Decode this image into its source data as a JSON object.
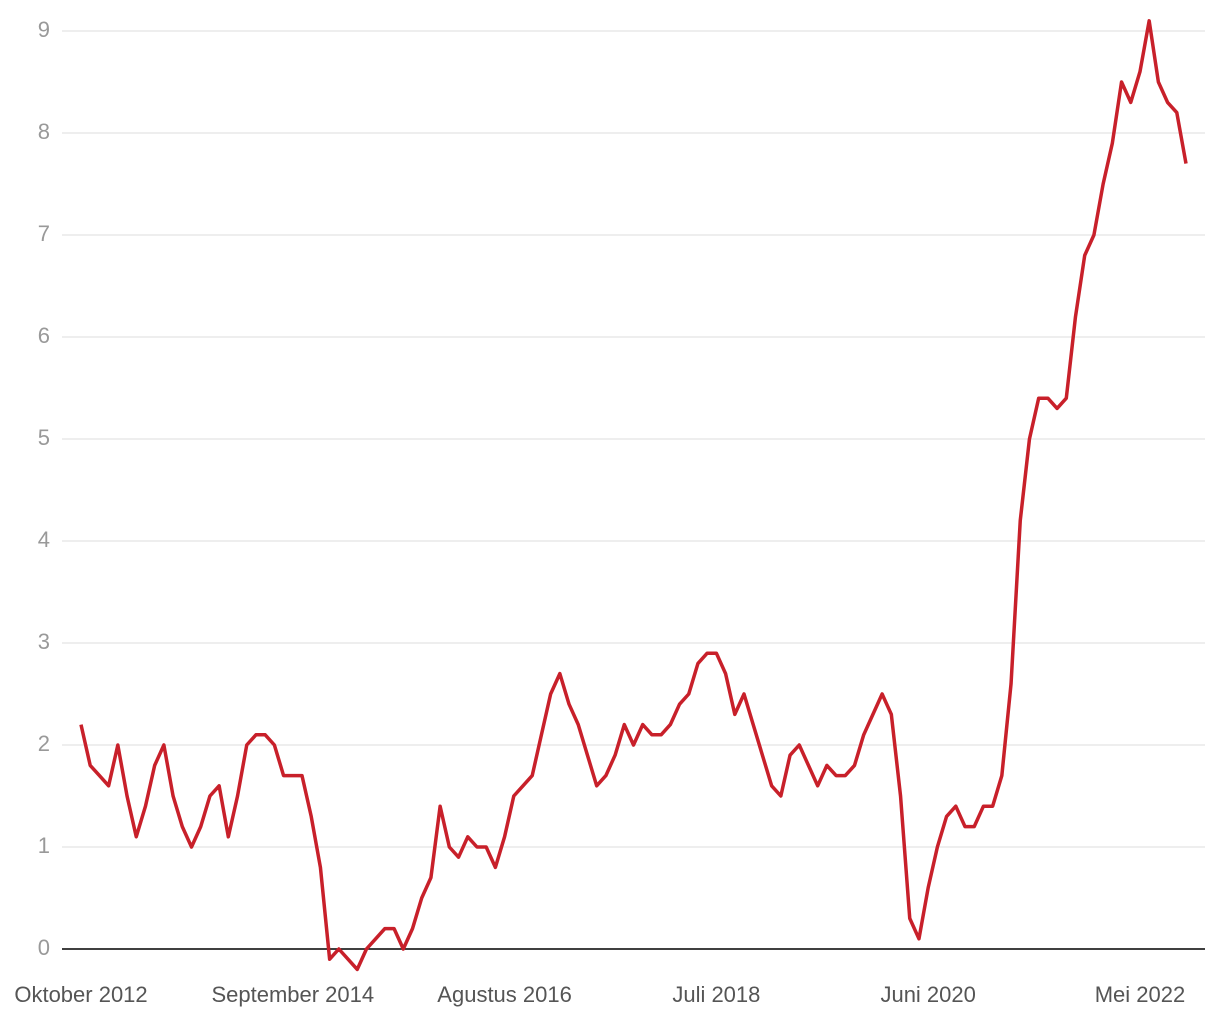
{
  "chart_data": {
    "type": "line",
    "categories": [
      "Oktober 2012",
      null,
      null,
      null,
      null,
      null,
      null,
      null,
      null,
      null,
      null,
      null,
      null,
      null,
      null,
      null,
      null,
      null,
      null,
      null,
      null,
      null,
      null,
      "September 2014",
      null,
      null,
      null,
      null,
      null,
      null,
      null,
      null,
      null,
      null,
      null,
      null,
      null,
      null,
      null,
      null,
      null,
      null,
      null,
      null,
      null,
      null,
      "Agustus 2016",
      null,
      null,
      null,
      null,
      null,
      null,
      null,
      null,
      null,
      null,
      null,
      null,
      null,
      null,
      null,
      null,
      null,
      null,
      null,
      null,
      null,
      null,
      "Juli 2018",
      null,
      null,
      null,
      null,
      null,
      null,
      null,
      null,
      null,
      null,
      null,
      null,
      null,
      null,
      null,
      null,
      null,
      null,
      null,
      null,
      null,
      null,
      "Juni 2020",
      null,
      null,
      null,
      null,
      null,
      null,
      null,
      null,
      null,
      null,
      null,
      null,
      null,
      null,
      null,
      null,
      null,
      null,
      null,
      null,
      null,
      null,
      "Mei 2022",
      null,
      null,
      null,
      null,
      null
    ],
    "values": [
      2.2,
      1.8,
      1.7,
      1.6,
      2.0,
      1.5,
      1.1,
      1.4,
      1.8,
      2.0,
      1.5,
      1.2,
      1.0,
      1.2,
      1.5,
      1.6,
      1.1,
      1.5,
      2.0,
      2.1,
      2.1,
      2.0,
      1.7,
      1.7,
      1.7,
      1.3,
      0.8,
      -0.1,
      0.0,
      -0.1,
      -0.2,
      0.0,
      0.1,
      0.2,
      0.2,
      0.0,
      0.2,
      0.5,
      0.7,
      1.4,
      1.0,
      0.9,
      1.1,
      1.0,
      1.0,
      0.8,
      1.1,
      1.5,
      1.6,
      1.7,
      2.1,
      2.5,
      2.7,
      2.4,
      2.2,
      1.9,
      1.6,
      1.7,
      1.9,
      2.2,
      2.0,
      2.2,
      2.1,
      2.1,
      2.2,
      2.4,
      2.5,
      2.8,
      2.9,
      2.9,
      2.7,
      2.3,
      2.5,
      2.2,
      1.9,
      1.6,
      1.5,
      1.9,
      2.0,
      1.8,
      1.6,
      1.8,
      1.7,
      1.7,
      1.8,
      2.1,
      2.3,
      2.5,
      2.3,
      1.5,
      0.3,
      0.1,
      0.6,
      1.0,
      1.3,
      1.4,
      1.2,
      1.2,
      1.4,
      1.4,
      1.7,
      2.6,
      4.2,
      5.0,
      5.4,
      5.4,
      5.3,
      5.4,
      6.2,
      6.8,
      7.0,
      7.5,
      7.9,
      8.5,
      8.3,
      8.6,
      9.1,
      8.5,
      8.3,
      8.2,
      7.7
    ],
    "color": "#c8202a",
    "ylim": [
      -0.3,
      9.1
    ],
    "yticks": [
      0,
      1,
      2,
      3,
      4,
      5,
      6,
      7,
      8,
      9
    ],
    "grid": true
  }
}
